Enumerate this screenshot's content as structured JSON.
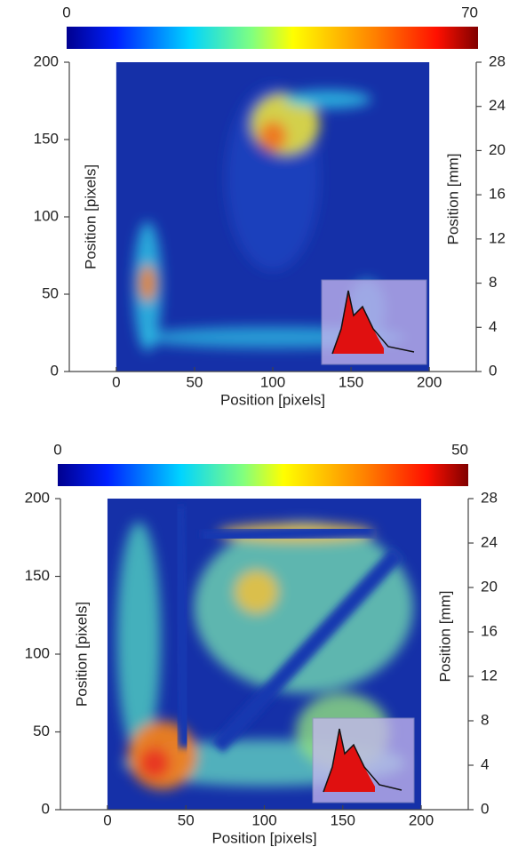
{
  "chart_data": [
    {
      "type": "heatmap",
      "colormap": "jet",
      "clim": [
        0,
        70
      ],
      "cticks": [
        0,
        70
      ],
      "xlabel": "Position [pixels]",
      "ylabel": "Position [pixels]",
      "y2label": "Position [mm]",
      "xlim": [
        -30,
        230
      ],
      "xticks": [
        0,
        50,
        100,
        150,
        200
      ],
      "ylim": [
        0,
        200
      ],
      "yticks": [
        0,
        50,
        100,
        150,
        200
      ],
      "y2lim": [
        0,
        28
      ],
      "y2ticks": [
        0,
        4,
        8,
        12,
        16,
        20,
        24,
        28
      ]
    },
    {
      "type": "heatmap",
      "colormap": "jet",
      "clim": [
        0,
        50
      ],
      "cticks": [
        0,
        50
      ],
      "xlabel": "Position [pixels]",
      "ylabel": "Position [pixels]",
      "y2label": "Position [mm]",
      "xlim": [
        -30,
        230
      ],
      "xticks": [
        0,
        50,
        100,
        150,
        200
      ],
      "ylim": [
        0,
        200
      ],
      "yticks": [
        0,
        50,
        100,
        150,
        200
      ],
      "y2lim": [
        0,
        28
      ],
      "y2ticks": [
        0,
        4,
        8,
        12,
        16,
        20,
        24,
        28
      ]
    }
  ]
}
